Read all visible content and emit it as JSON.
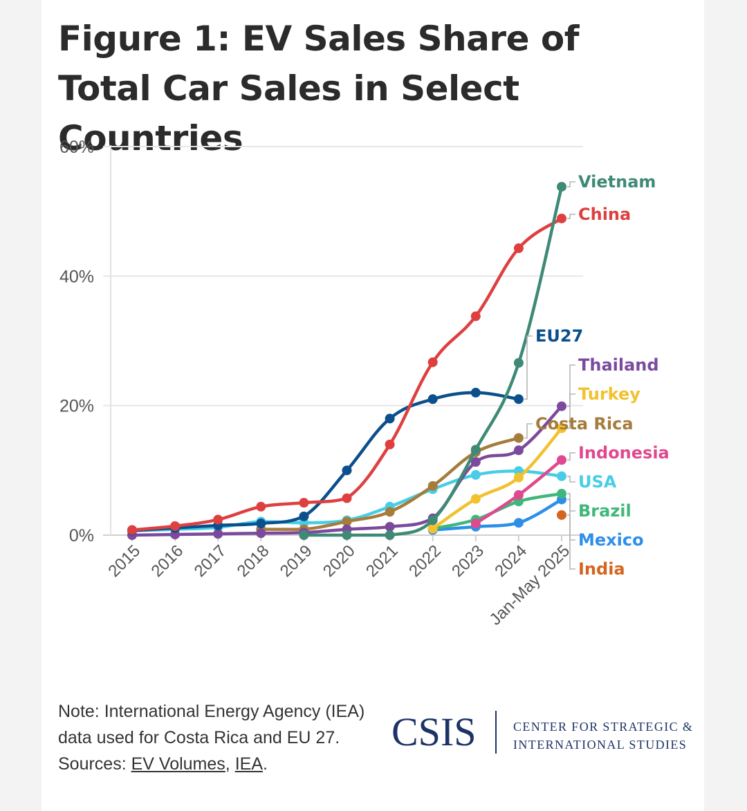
{
  "title": "Figure 1: EV Sales Share of Total Car Sales in Select Countries",
  "note": "Note: International Energy Agency (IEA) data used for Costa Rica and EU 27.",
  "sources_prefix": "Sources: ",
  "source_1": "EV Volumes",
  "source_sep": ", ",
  "source_2": "IEA",
  "source_end": ".",
  "logo": {
    "mark": "CSIS",
    "line1": "CENTER FOR STRATEGIC &",
    "line2": "INTERNATIONAL STUDIES",
    "color": "#1d3266"
  },
  "chart_data": {
    "type": "line",
    "title": "",
    "xlabel": "",
    "ylabel": "",
    "categories": [
      "2015",
      "2016",
      "2017",
      "2018",
      "2019",
      "2020",
      "2021",
      "2022",
      "2023",
      "2024",
      "Jan-May 2025"
    ],
    "ylim": [
      0,
      60
    ],
    "yticks": [
      0,
      20,
      40,
      60
    ],
    "ytick_labels": [
      "0%",
      "20%",
      "40%",
      "60%"
    ],
    "grid": true,
    "legend": "direct labels right",
    "series": [
      {
        "name": "Vietnam",
        "color": "#3e8a76",
        "values": [
          null,
          null,
          null,
          null,
          0,
          0,
          0,
          2.3,
          13.2,
          26.6,
          53.8
        ]
      },
      {
        "name": "China",
        "color": "#de4040",
        "values": [
          0.8,
          1.4,
          2.4,
          4.4,
          5.0,
          5.7,
          14.0,
          26.7,
          33.8,
          44.3,
          48.9
        ]
      },
      {
        "name": "EU27",
        "color": "#0b4f8c",
        "values": [
          0.7,
          1.1,
          1.5,
          1.8,
          2.9,
          10.0,
          18.0,
          21.0,
          22.0,
          21.0,
          null
        ]
      },
      {
        "name": "Thailand",
        "color": "#7b4a9c",
        "values": [
          0.0,
          0.1,
          0.2,
          0.3,
          0.4,
          0.9,
          1.3,
          2.6,
          11.3,
          13.1,
          19.9
        ]
      },
      {
        "name": "Turkey",
        "color": "#f2c12e",
        "values": [
          null,
          null,
          null,
          null,
          null,
          null,
          null,
          1.0,
          5.6,
          8.9,
          16.5
        ]
      },
      {
        "name": "Costa Rica",
        "color": "#a67c3d",
        "values": [
          null,
          null,
          null,
          0.9,
          0.9,
          2.1,
          3.6,
          7.6,
          12.8,
          15.0,
          null
        ]
      },
      {
        "name": "Indonesia",
        "color": "#e0488f",
        "values": [
          null,
          null,
          null,
          null,
          null,
          null,
          null,
          null,
          1.8,
          6.2,
          11.6
        ]
      },
      {
        "name": "USA",
        "color": "#48cde6",
        "values": [
          0.7,
          0.9,
          1.2,
          2.1,
          1.9,
          2.3,
          4.4,
          7.1,
          9.3,
          9.9,
          9.1
        ]
      },
      {
        "name": "Brazil",
        "color": "#3fb77a",
        "values": [
          null,
          null,
          null,
          null,
          null,
          null,
          null,
          1.0,
          2.4,
          5.2,
          6.4
        ]
      },
      {
        "name": "Mexico",
        "color": "#2e8fe8",
        "values": [
          null,
          null,
          null,
          null,
          null,
          null,
          null,
          0.8,
          1.3,
          1.9,
          5.5
        ]
      },
      {
        "name": "India",
        "color": "#d4651f",
        "values": [
          null,
          null,
          null,
          null,
          null,
          null,
          null,
          null,
          null,
          null,
          3.1
        ]
      }
    ]
  }
}
